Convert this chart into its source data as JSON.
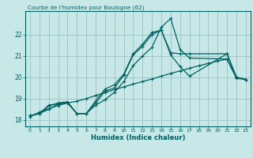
{
  "title": "Courbe de l'humidex pour Boulogne (62)",
  "xlabel": "Humidex (Indice chaleur)",
  "background_color": "#c8e8e8",
  "grid_color": "#a0c8c8",
  "line_color": "#006060",
  "xlim": [
    -0.5,
    23.5
  ],
  "ylim": [
    17.7,
    23.1
  ],
  "yticks": [
    18,
    19,
    20,
    21,
    22
  ],
  "xticks": [
    0,
    1,
    2,
    3,
    4,
    5,
    6,
    7,
    8,
    9,
    10,
    11,
    12,
    13,
    14,
    15,
    16,
    17,
    18,
    19,
    20,
    21,
    22,
    23
  ],
  "s1_x": [
    0,
    1,
    2,
    3,
    4,
    5,
    6,
    7,
    8,
    9,
    10,
    11,
    12,
    13,
    14,
    15,
    16,
    17,
    21,
    22,
    23
  ],
  "s1_y": [
    18.2,
    18.3,
    18.7,
    18.75,
    18.8,
    18.3,
    18.3,
    18.8,
    19.35,
    19.5,
    20.1,
    21.05,
    21.45,
    22.0,
    22.2,
    21.05,
    20.5,
    20.05,
    21.1,
    20.0,
    19.9
  ],
  "s2_x": [
    0,
    1,
    2,
    3,
    4,
    5,
    6,
    7,
    8,
    9,
    10,
    11,
    12,
    13,
    14,
    15,
    16,
    17,
    21,
    22,
    23
  ],
  "s2_y": [
    18.2,
    18.3,
    18.65,
    18.8,
    18.85,
    18.3,
    18.3,
    18.9,
    19.45,
    19.65,
    20.15,
    21.1,
    21.55,
    22.1,
    22.2,
    21.15,
    21.1,
    21.1,
    21.1,
    20.0,
    19.9
  ],
  "s3_x": [
    0,
    1,
    2,
    3,
    4,
    5,
    6,
    7,
    8,
    9,
    10,
    11,
    12,
    13,
    14,
    15,
    16,
    17,
    21,
    22,
    23
  ],
  "s3_y": [
    18.2,
    18.3,
    18.5,
    18.75,
    18.8,
    18.3,
    18.3,
    18.7,
    18.95,
    19.3,
    19.8,
    20.55,
    21.0,
    21.4,
    22.35,
    22.75,
    21.3,
    20.9,
    20.85,
    20.0,
    19.9
  ],
  "s4_x": [
    0,
    1,
    2,
    3,
    4,
    5,
    6,
    7,
    8,
    9,
    10,
    11,
    12,
    13,
    14,
    15,
    16,
    17,
    18,
    19,
    20,
    21,
    22,
    23
  ],
  "s4_y": [
    18.15,
    18.37,
    18.53,
    18.68,
    18.8,
    18.88,
    19.0,
    19.15,
    19.28,
    19.42,
    19.55,
    19.68,
    19.8,
    19.92,
    20.05,
    20.18,
    20.3,
    20.42,
    20.54,
    20.65,
    20.76,
    20.85,
    19.95,
    19.9
  ]
}
